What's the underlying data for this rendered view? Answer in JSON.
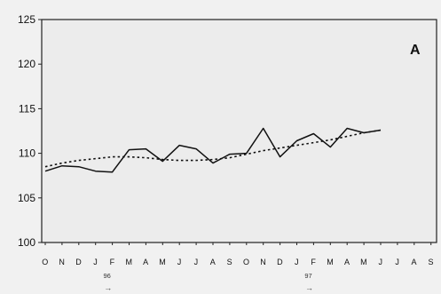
{
  "chart_data": {
    "type": "line",
    "title": "",
    "xlabel": "",
    "ylabel": "",
    "panel_label": "A",
    "ylim": [
      100,
      125
    ],
    "yticks": [
      "100",
      "105",
      "110",
      "115",
      "120",
      "125"
    ],
    "categories": [
      "O",
      "N",
      "D",
      "J",
      "F",
      "M",
      "A",
      "M",
      "J",
      "J",
      "A",
      "S",
      "O",
      "N",
      "D",
      "J",
      "F",
      "M",
      "A",
      "M",
      "J",
      "J",
      "A",
      "S"
    ],
    "year_markers": [
      {
        "label": "96",
        "arrow": "→",
        "index": 3
      },
      {
        "label": "97",
        "arrow": "→",
        "index": 15
      }
    ],
    "grid": false,
    "series": [
      {
        "style": "solid",
        "values": [
          108.0,
          108.6,
          108.5,
          108.0,
          107.9,
          110.4,
          110.5,
          109.1,
          110.9,
          110.5,
          108.9,
          109.9,
          110.0,
          112.8,
          109.6,
          111.4,
          112.2,
          110.7,
          112.8,
          112.3,
          112.6,
          null,
          null,
          null
        ]
      },
      {
        "style": "dashed",
        "values": [
          108.5,
          108.9,
          109.2,
          109.4,
          109.6,
          109.6,
          109.5,
          109.3,
          109.2,
          109.2,
          109.3,
          109.5,
          109.9,
          110.3,
          110.6,
          110.9,
          111.2,
          111.5,
          111.9,
          112.3,
          112.6,
          null,
          null,
          null
        ]
      }
    ]
  }
}
